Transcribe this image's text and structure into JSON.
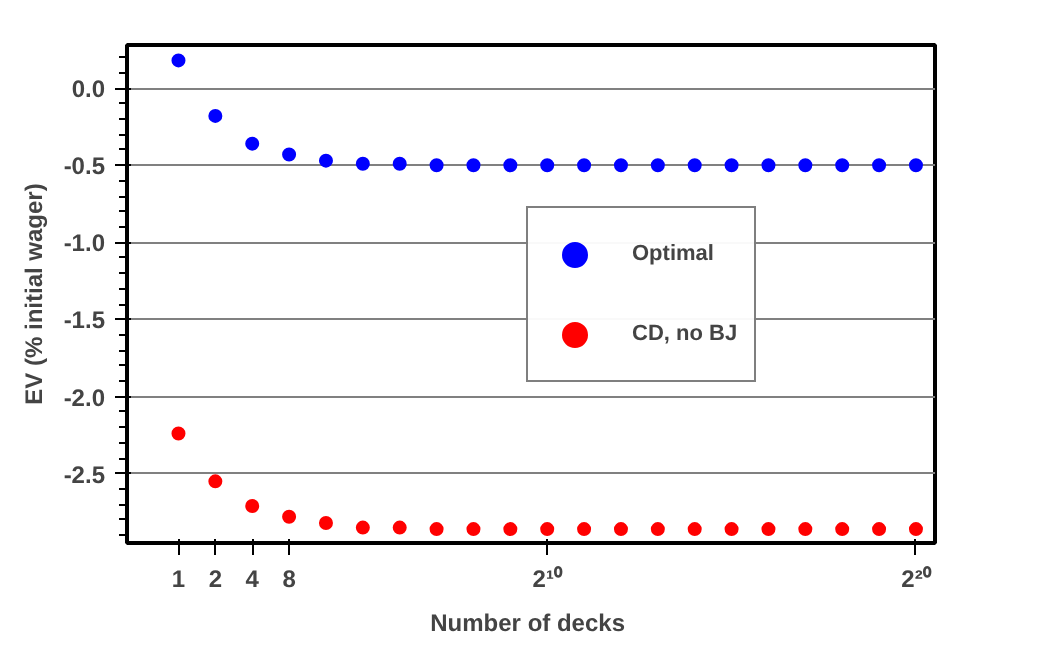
{
  "chart_data": {
    "type": "scatter",
    "xlabel": "Number  of decks",
    "ylabel": "EV (% initial wager)",
    "x": [
      1,
      2,
      4,
      8,
      16,
      32,
      64,
      128,
      256,
      512,
      1024,
      2048,
      4096,
      8192,
      16384,
      32768,
      65536,
      131072,
      262144,
      524288,
      1048576
    ],
    "series": [
      {
        "name": "Optimal",
        "color": "#0000ff",
        "values": [
          0.18,
          -0.18,
          -0.36,
          -0.43,
          -0.47,
          -0.49,
          -0.49,
          -0.5,
          -0.5,
          -0.5,
          -0.5,
          -0.5,
          -0.5,
          -0.5,
          -0.5,
          -0.5,
          -0.5,
          -0.5,
          -0.5,
          -0.5,
          -0.5
        ]
      },
      {
        "name": "CD, no BJ",
        "color": "#ff0000",
        "values": [
          -2.24,
          -2.55,
          -2.71,
          -2.78,
          -2.82,
          -2.85,
          -2.85,
          -2.86,
          -2.86,
          -2.86,
          -2.86,
          -2.86,
          -2.86,
          -2.86,
          -2.86,
          -2.86,
          -2.86,
          -2.86,
          -2.86,
          -2.86,
          -2.86
        ]
      }
    ],
    "log": "x",
    "xlim": [
      0.38,
      1500000
    ],
    "ylim": [
      -2.95,
      0.28
    ],
    "xticks": [
      1,
      2,
      4,
      8,
      {
        "value": 1024,
        "label": "2¹⁰"
      },
      {
        "value": 1048576,
        "label": "2²⁰"
      }
    ],
    "yticks": [
      {
        "value": 0,
        "label": "0.0"
      },
      {
        "value": -0.5,
        "label": "-0.5"
      },
      {
        "value": -1,
        "label": "-1.0"
      },
      {
        "value": -1.5,
        "label": "-1.5"
      },
      {
        "value": -2,
        "label": "-2.0"
      },
      {
        "value": -2.5,
        "label": "-2.5"
      }
    ],
    "grid": "y",
    "legend": "center",
    "marker": "circle"
  }
}
